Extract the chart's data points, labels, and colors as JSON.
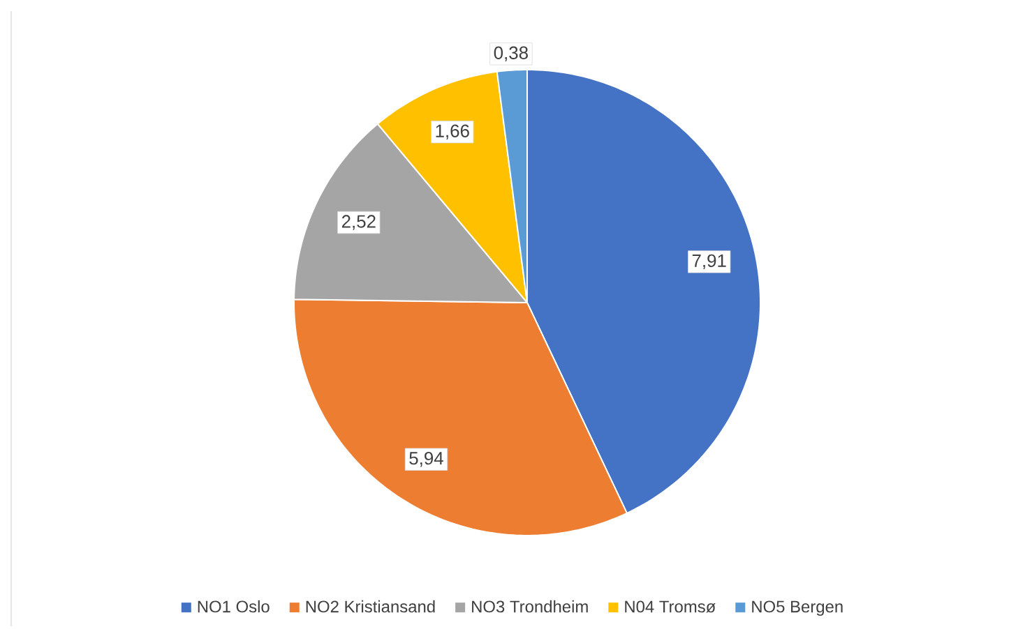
{
  "chart_data": {
    "type": "pie",
    "categories": [
      "NO1 Oslo",
      "NO2 Kristiansand",
      "NO3 Trondheim",
      "N04 Tromsø",
      "NO5 Bergen"
    ],
    "values": [
      7.91,
      5.94,
      2.52,
      1.66,
      0.38
    ],
    "value_labels": [
      "7,91",
      "5,94",
      "2,52",
      "1,66",
      "0,38"
    ],
    "colors": [
      "#4472c4",
      "#ed7d31",
      "#a5a5a5",
      "#ffc000",
      "#5b9bd5"
    ],
    "legend": "bottom"
  }
}
